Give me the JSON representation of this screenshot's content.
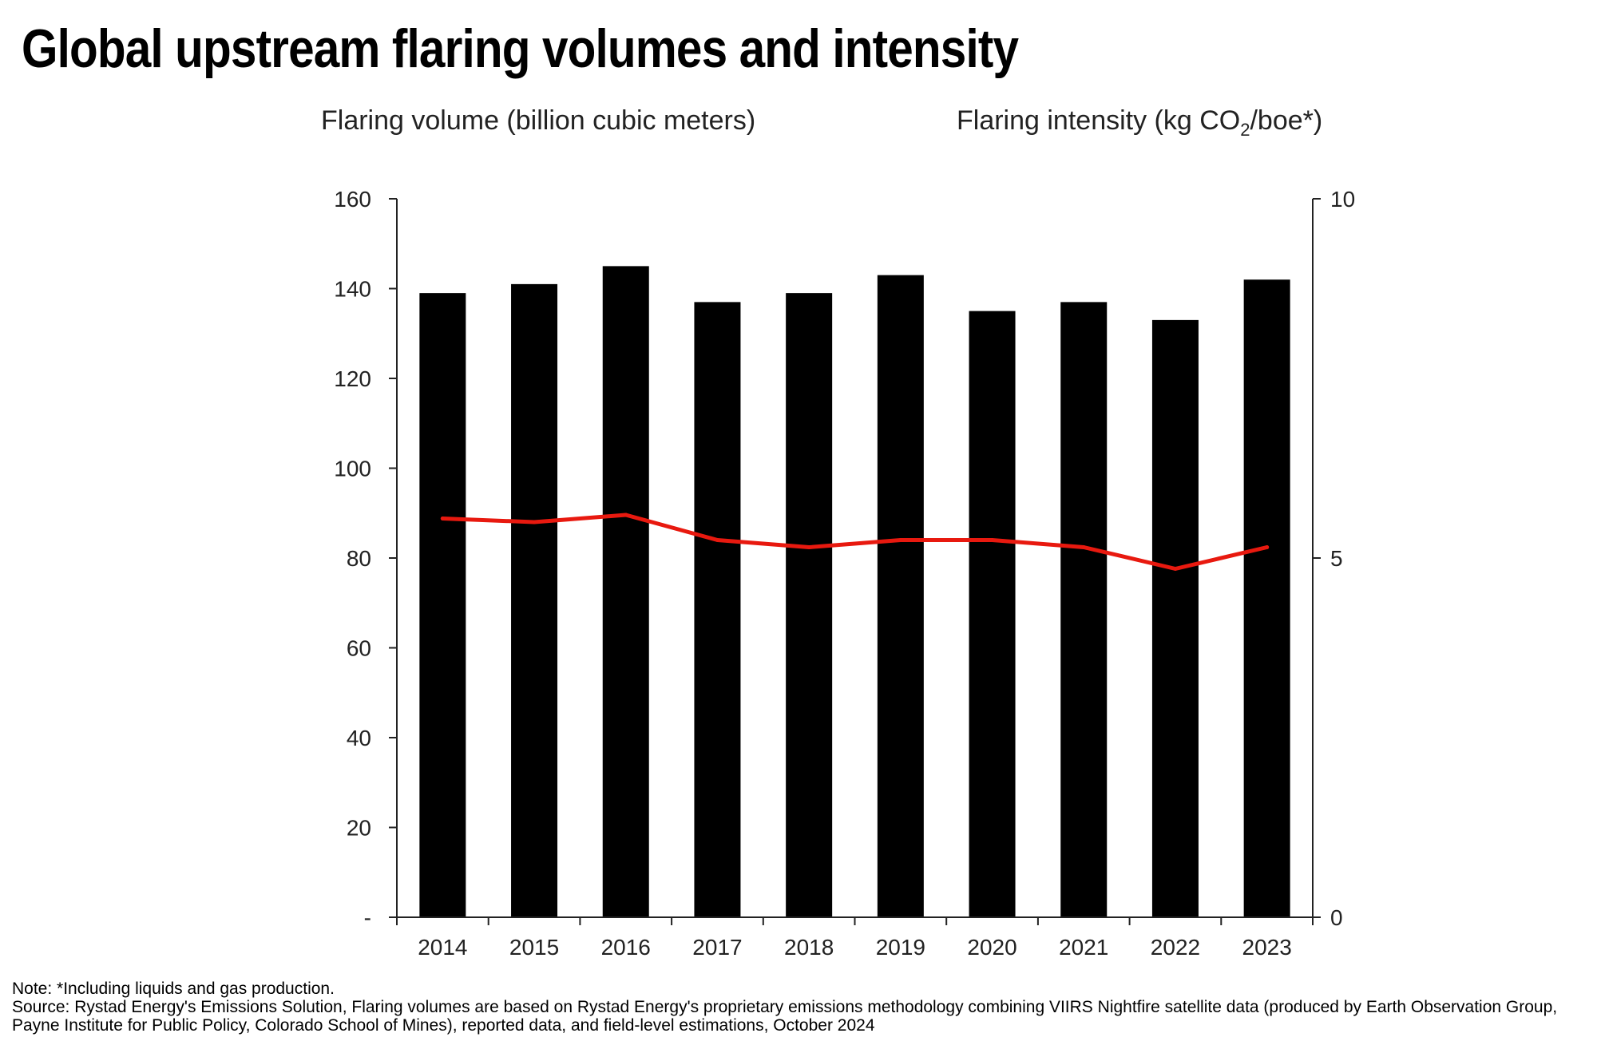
{
  "title": "Global upstream flaring volumes and intensity",
  "left_axis_title": "Flaring volume (billion cubic meters)",
  "right_axis_title": {
    "prefix": "Flaring intensity (kg CO",
    "sub": "2",
    "suffix": "/boe*)"
  },
  "note": "Note: *Including liquids and gas production.",
  "source": "Source: Rystad Energy's Emissions Solution, Flaring volumes are based on Rystad Energy's proprietary emissions methodology combining VIIRS Nightfire satellite data (produced by Earth Observation Group, Payne Institute for Public Policy, Colorado School of Mines), reported data, and field-level estimations, October 2024",
  "colors": {
    "bar": "#000000",
    "line": "#e8190f",
    "axis": "#222222"
  },
  "chart_data": {
    "type": "bar",
    "categories": [
      "2014",
      "2015",
      "2016",
      "2017",
      "2018",
      "2019",
      "2020",
      "2021",
      "2022",
      "2023"
    ],
    "series": [
      {
        "type": "bar",
        "axis": "left",
        "values": [
          139,
          141,
          145,
          137,
          139,
          143,
          135,
          137,
          133,
          142
        ]
      },
      {
        "type": "line",
        "axis": "right",
        "values": [
          5.55,
          5.5,
          5.6,
          5.25,
          5.15,
          5.25,
          5.25,
          5.15,
          4.85,
          5.15
        ]
      }
    ],
    "y_left": {
      "min": 0,
      "max": 160,
      "ticks": [
        0,
        20,
        40,
        60,
        80,
        100,
        120,
        140,
        160
      ],
      "tick_labels": [
        "-",
        "20",
        "40",
        "60",
        "80",
        "100",
        "120",
        "140",
        "160"
      ]
    },
    "y_right": {
      "min": 0,
      "max": 10,
      "ticks": [
        0,
        5,
        10
      ],
      "tick_labels": [
        "0",
        "5",
        "10"
      ]
    },
    "grid": false,
    "legend": "none"
  }
}
